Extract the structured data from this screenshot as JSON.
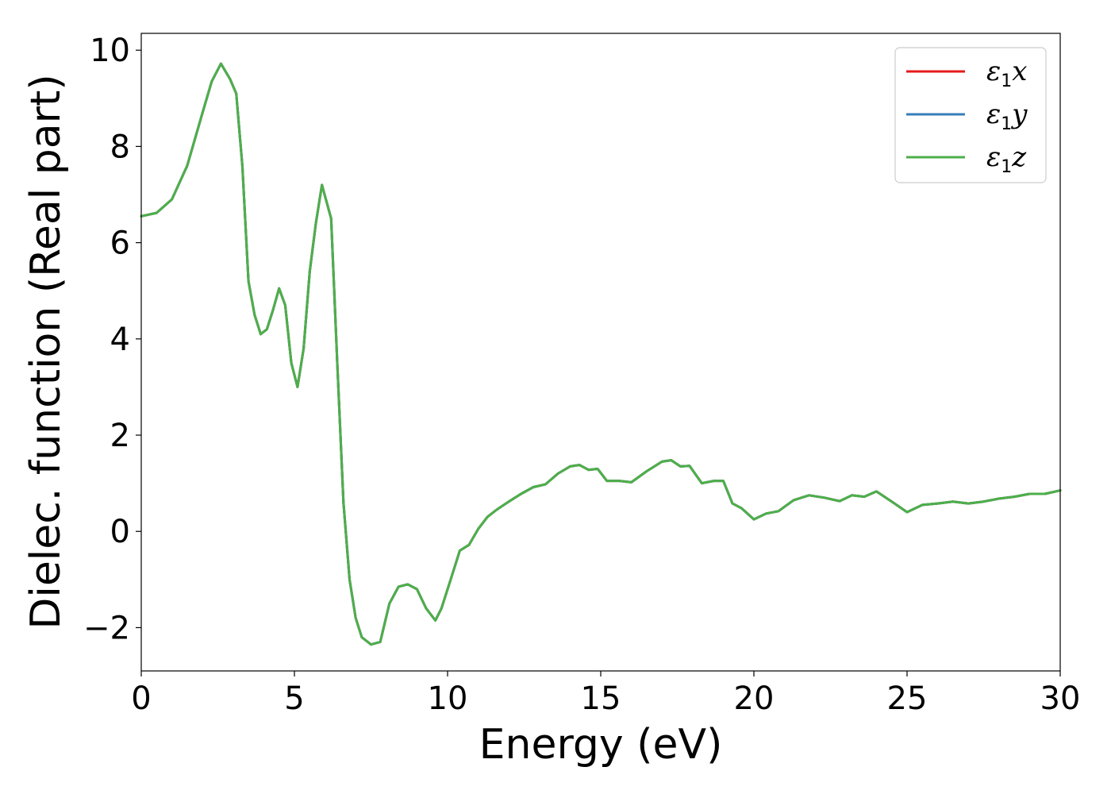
{
  "chart_data": {
    "type": "line",
    "title": "",
    "xlabel": "Energy (eV)",
    "ylabel": "Dielec. function (Real part)",
    "xlim": [
      0,
      30
    ],
    "ylim": [
      -2.9,
      10.35
    ],
    "xticks": [
      0,
      5,
      10,
      15,
      20,
      25,
      30
    ],
    "xtick_labels": [
      "0",
      "5",
      "10",
      "15",
      "20",
      "25",
      "30"
    ],
    "yticks": [
      -2,
      0,
      2,
      4,
      6,
      8,
      10
    ],
    "ytick_labels": [
      "−2",
      "0",
      "2",
      "4",
      "6",
      "8",
      "10"
    ],
    "grid": false,
    "legend_position": "top-right",
    "x": [
      0,
      0.5,
      1,
      1.5,
      2,
      2.3,
      2.6,
      2.9,
      3.1,
      3.3,
      3.5,
      3.7,
      3.9,
      4.1,
      4.3,
      4.5,
      4.7,
      4.9,
      5.1,
      5.3,
      5.5,
      5.7,
      5.9,
      6.2,
      6.4,
      6.6,
      6.8,
      7.0,
      7.2,
      7.5,
      7.8,
      8.1,
      8.4,
      8.7,
      9.0,
      9.3,
      9.6,
      9.8,
      10.1,
      10.4,
      10.7,
      11.0,
      11.3,
      11.6,
      12.0,
      12.4,
      12.8,
      13.2,
      13.6,
      14.0,
      14.3,
      14.6,
      14.9,
      15.2,
      15.6,
      16.0,
      16.5,
      17.0,
      17.3,
      17.6,
      17.9,
      18.3,
      18.7,
      19.0,
      19.3,
      19.6,
      20.0,
      20.4,
      20.8,
      21.3,
      21.8,
      22.3,
      22.8,
      23.2,
      23.6,
      24.0,
      24.5,
      25.0,
      25.5,
      26.0,
      26.5,
      27.0,
      27.5,
      28.0,
      28.5,
      29.0,
      29.5,
      30.0
    ],
    "series": [
      {
        "name": "ε1x",
        "label_main": "ε",
        "label_sub": "1",
        "label_tail": "x",
        "color": "#e41a1c",
        "values": [
          6.55,
          6.62,
          6.9,
          7.6,
          8.7,
          9.35,
          9.72,
          9.4,
          9.1,
          7.6,
          5.2,
          4.5,
          4.1,
          4.2,
          4.6,
          5.05,
          4.7,
          3.5,
          3.0,
          3.8,
          5.4,
          6.4,
          7.2,
          6.5,
          3.5,
          0.6,
          -1.0,
          -1.8,
          -2.2,
          -2.35,
          -2.3,
          -1.5,
          -1.15,
          -1.1,
          -1.2,
          -1.6,
          -1.85,
          -1.6,
          -1.0,
          -0.4,
          -0.28,
          0.05,
          0.3,
          0.45,
          0.62,
          0.78,
          0.92,
          0.98,
          1.2,
          1.35,
          1.38,
          1.28,
          1.3,
          1.05,
          1.05,
          1.02,
          1.25,
          1.45,
          1.48,
          1.35,
          1.36,
          1.0,
          1.05,
          1.05,
          0.58,
          0.48,
          0.25,
          0.37,
          0.42,
          0.65,
          0.75,
          0.7,
          0.63,
          0.75,
          0.72,
          0.83,
          0.62,
          0.4,
          0.55,
          0.58,
          0.62,
          0.58,
          0.62,
          0.68,
          0.72,
          0.78,
          0.78,
          0.85
        ]
      },
      {
        "name": "ε1y",
        "label_main": "ε",
        "label_sub": "1",
        "label_tail": "y",
        "color": "#377eb8",
        "values": [
          6.55,
          6.62,
          6.9,
          7.6,
          8.7,
          9.35,
          9.72,
          9.4,
          9.1,
          7.6,
          5.2,
          4.5,
          4.1,
          4.2,
          4.6,
          5.05,
          4.7,
          3.5,
          3.0,
          3.8,
          5.4,
          6.4,
          7.2,
          6.5,
          3.5,
          0.6,
          -1.0,
          -1.8,
          -2.2,
          -2.35,
          -2.3,
          -1.5,
          -1.15,
          -1.1,
          -1.2,
          -1.6,
          -1.85,
          -1.6,
          -1.0,
          -0.4,
          -0.28,
          0.05,
          0.3,
          0.45,
          0.62,
          0.78,
          0.92,
          0.98,
          1.2,
          1.35,
          1.38,
          1.28,
          1.3,
          1.05,
          1.05,
          1.02,
          1.25,
          1.45,
          1.48,
          1.35,
          1.36,
          1.0,
          1.05,
          1.05,
          0.58,
          0.48,
          0.25,
          0.37,
          0.42,
          0.65,
          0.75,
          0.7,
          0.63,
          0.75,
          0.72,
          0.83,
          0.62,
          0.4,
          0.55,
          0.58,
          0.62,
          0.58,
          0.62,
          0.68,
          0.72,
          0.78,
          0.78,
          0.85
        ]
      },
      {
        "name": "ε1z",
        "label_main": "ε",
        "label_sub": "1",
        "label_tail": "z",
        "color": "#4daf4a",
        "values": [
          6.55,
          6.62,
          6.9,
          7.6,
          8.7,
          9.35,
          9.72,
          9.4,
          9.1,
          7.6,
          5.2,
          4.5,
          4.1,
          4.2,
          4.6,
          5.05,
          4.7,
          3.5,
          3.0,
          3.8,
          5.4,
          6.4,
          7.2,
          6.5,
          3.5,
          0.6,
          -1.0,
          -1.8,
          -2.2,
          -2.35,
          -2.3,
          -1.5,
          -1.15,
          -1.1,
          -1.2,
          -1.6,
          -1.85,
          -1.6,
          -1.0,
          -0.4,
          -0.28,
          0.05,
          0.3,
          0.45,
          0.62,
          0.78,
          0.92,
          0.98,
          1.2,
          1.35,
          1.38,
          1.28,
          1.3,
          1.05,
          1.05,
          1.02,
          1.25,
          1.45,
          1.48,
          1.35,
          1.36,
          1.0,
          1.05,
          1.05,
          0.58,
          0.48,
          0.25,
          0.37,
          0.42,
          0.65,
          0.75,
          0.7,
          0.63,
          0.75,
          0.72,
          0.83,
          0.62,
          0.4,
          0.55,
          0.58,
          0.62,
          0.58,
          0.62,
          0.68,
          0.72,
          0.78,
          0.78,
          0.85
        ]
      }
    ]
  }
}
